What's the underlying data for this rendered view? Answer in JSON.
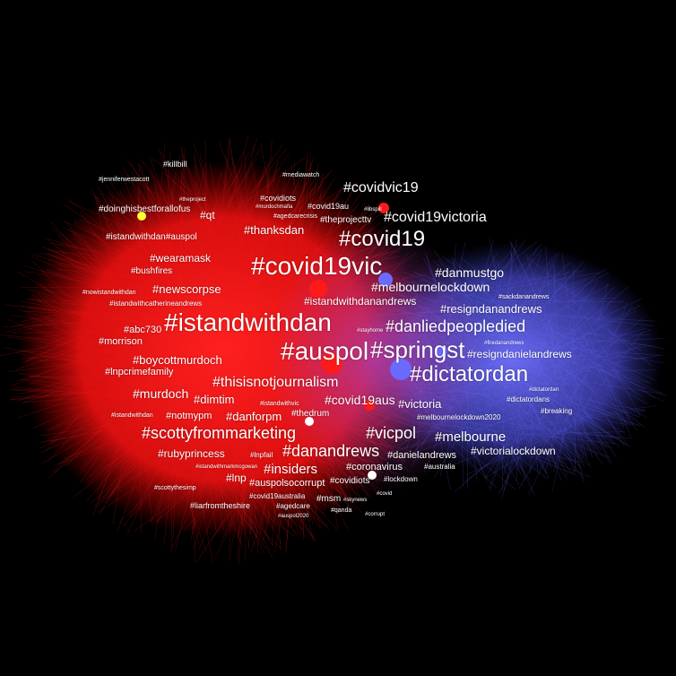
{
  "colors": {
    "background": "#000000",
    "cluster_left": "#ff1a1a",
    "cluster_right": "#6a6aff",
    "highlight": "#ffff33",
    "label": "#ffffff"
  },
  "labels": [
    "#covid19vic",
    "#istandwithdan",
    "#auspol",
    "#springst",
    "#dictatordan",
    "#covid19",
    "#danliedpeopledied",
    "#covid19victoria",
    "#covidvic19",
    "#thisisnotjournalism",
    "#scottyfrommarketing",
    "#danandrews",
    "#insiders",
    "#vicpol",
    "#melbourne",
    "#victorialockdown",
    "#resigndanandrews",
    "#resigndanielandrews",
    "#melbournelockdown",
    "#danmustgo",
    "#istandwithdanandrews",
    "#thanksdan",
    "#newscorpse",
    "#wearamask",
    "#boycottmurdoch",
    "#lnpcrimefamily",
    "#murdoch",
    "#dimtim",
    "#danforpm",
    "#notmypm",
    "#rubyprincess",
    "#auspolsocorrupt",
    "#lnp",
    "#covid19aus",
    "#victoria",
    "#thedrum",
    "#abc730",
    "#morrison",
    "#coronavirus",
    "#covidiots",
    "#danielandrews",
    "#lockdown",
    "#msm",
    "#qt",
    "#doinghisbestforallofus",
    "#istandwithdan#auspol",
    "#bushfires",
    "#killbill",
    "#covidiots",
    "#covid19au",
    "#theprojecttv",
    "#liarfromtheshire",
    "#covid19australia",
    "#lnpfail",
    "#qanda",
    "#agedcare",
    "#dictatordans",
    "#breaking",
    "#melbournelockdown2020",
    "#australia",
    "#istandwithcatherineandrews",
    "#jenniferwestacott",
    "#mediawatch",
    "#agedcarecrisis",
    "#istandwithvic",
    "#sackdanandrews",
    "#stayhome",
    "#nowistandwithdan",
    "#istandwithdan",
    "#scottythesimp",
    "#skynews",
    "#covid",
    "#corrupt",
    "#istandwithmarkmcgowan",
    "#theproject",
    "#murdochmafia",
    "#libspill",
    "#dictatordan",
    "#auspol2020",
    "#firedanandrews"
  ]
}
